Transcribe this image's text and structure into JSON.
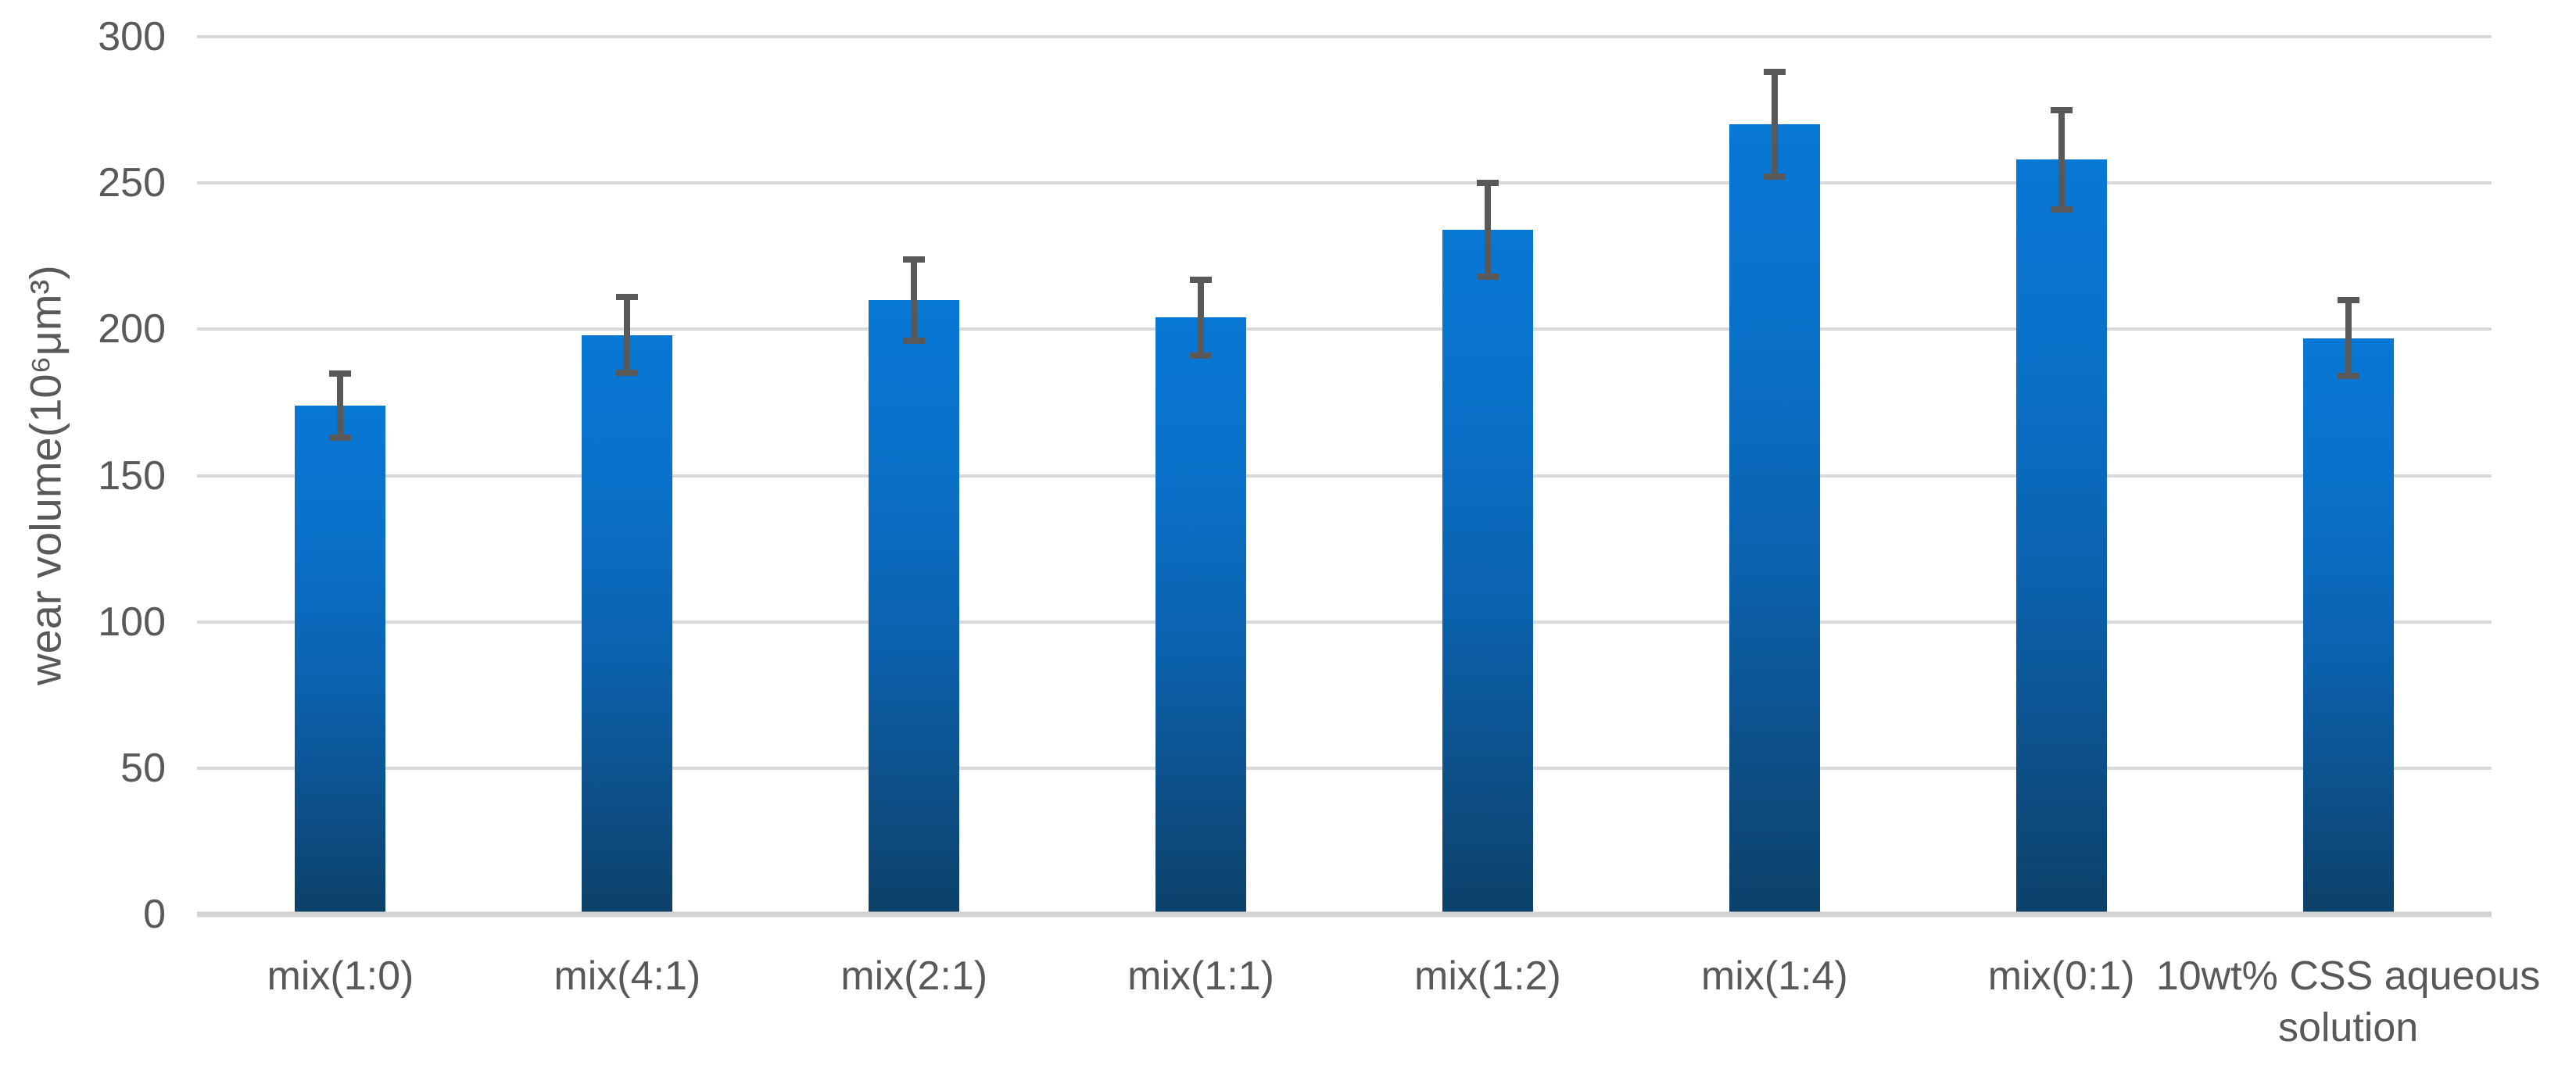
{
  "chart_data": {
    "type": "bar",
    "title": "",
    "xlabel": "",
    "ylabel": "wear volume(10⁶μm³)",
    "categories": [
      "mix(1:0)",
      "mix(4:1)",
      "mix(2:1)",
      "mix(1:1)",
      "mix(1:2)",
      "mix(1:4)",
      "mix(0:1)",
      "10wt% CSS aqueous solution"
    ],
    "values": [
      174,
      198,
      210,
      204,
      234,
      270,
      258,
      197
    ],
    "error_bars": [
      12,
      14,
      15,
      14,
      17,
      19,
      18,
      14
    ],
    "ylim": [
      0,
      300
    ],
    "yticks": [
      0,
      50,
      100,
      150,
      200,
      250,
      300
    ],
    "grid": true,
    "legend": "none",
    "colors": {
      "bar_gradient_top": "#0878d5",
      "bar_gradient_bottom": "#0c4169",
      "gridline": "#d9d9d9",
      "axis_line": "#d3d3d3",
      "text": "#595959",
      "error_bar": "#595959"
    }
  }
}
